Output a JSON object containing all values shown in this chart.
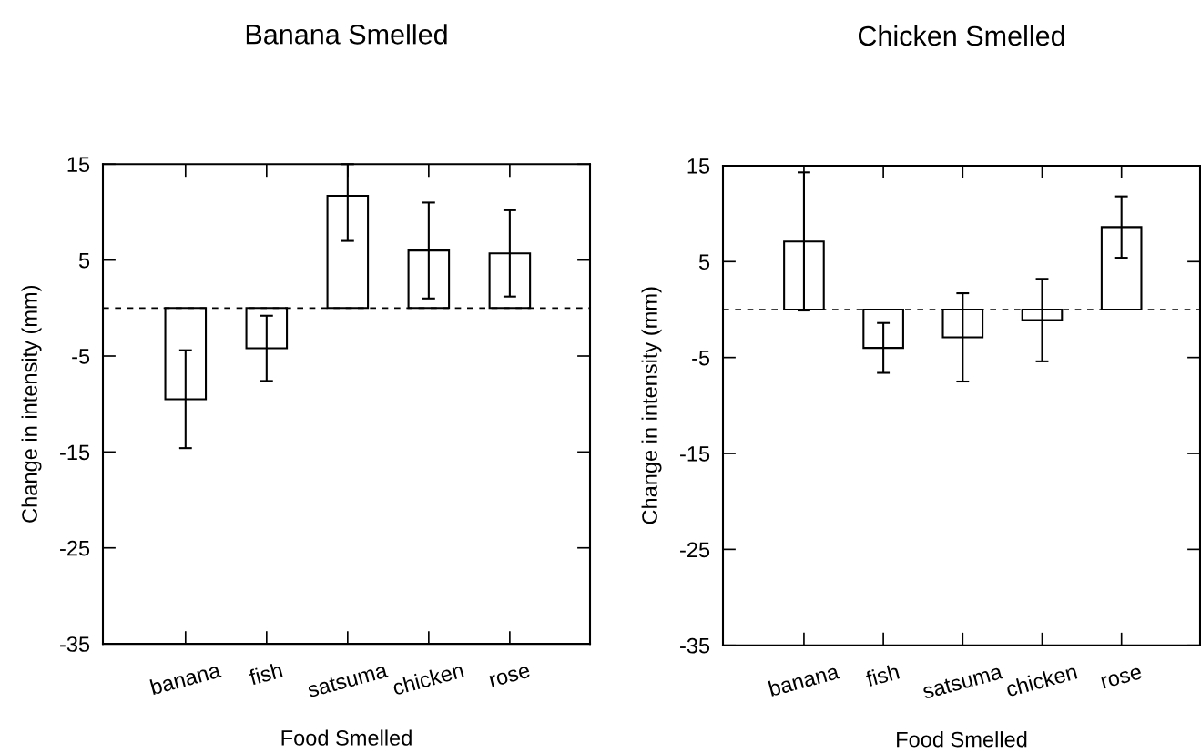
{
  "chart_data": [
    {
      "type": "bar",
      "title": "Banana Smelled",
      "xlabel": "Food Smelled",
      "ylabel": "Change in intensity (mm)",
      "categories": [
        "banana",
        "fish",
        "satsuma",
        "chicken",
        "rose"
      ],
      "series": [
        {
          "color": "#ffffff",
          "values": [
            -9.5,
            -4.2,
            11.7,
            6.0,
            5.7
          ],
          "errors": [
            5.1,
            3.4,
            [
              7.0,
              15
            ],
            5.0,
            4.5
          ]
        }
      ],
      "ylim": [
        -35,
        15
      ],
      "yticks": [
        15,
        5,
        -5,
        -15,
        -25,
        -35
      ],
      "grid": false,
      "legend": false,
      "ref_lines": [
        {
          "axis": "y",
          "value": 0,
          "color": "#000000",
          "line_style": "dashed"
        }
      ]
    },
    {
      "type": "bar",
      "title": "Chicken Smelled",
      "xlabel": "Food Smelled",
      "ylabel": "Change in intensity (mm)",
      "categories": [
        "banana",
        "fish",
        "satsuma",
        "chicken",
        "rose"
      ],
      "series": [
        {
          "color": "#ffffff",
          "values": [
            7.1,
            -4.0,
            -2.9,
            -1.1,
            8.6
          ],
          "errors": [
            7.2,
            2.6,
            4.6,
            4.3,
            3.2
          ]
        }
      ],
      "ylim": [
        -35,
        15
      ],
      "yticks": [
        15,
        5,
        -5,
        -15,
        -25,
        -35
      ],
      "grid": false,
      "legend": false,
      "ref_lines": [
        {
          "axis": "y",
          "value": 0,
          "color": "#000000",
          "line_style": "dashed"
        }
      ]
    }
  ]
}
